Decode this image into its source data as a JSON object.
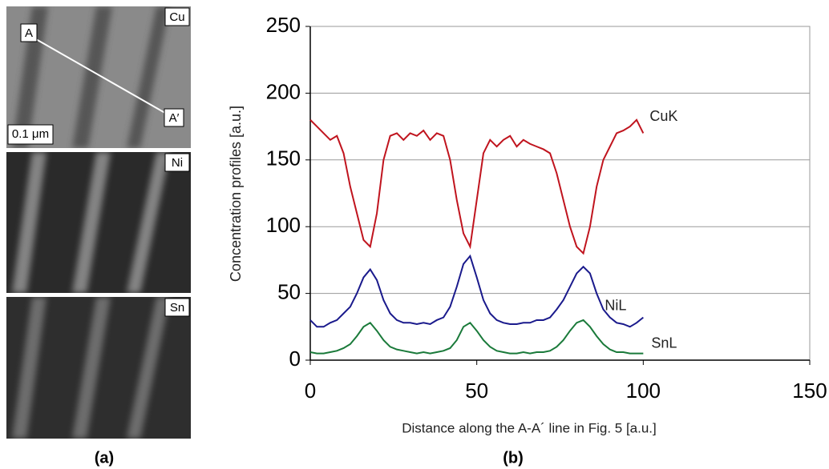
{
  "chart_data": {
    "type": "line",
    "xlabel": "Distance along the A-A´ line in Fig. 5 [a.u.]",
    "ylabel": "Concentration profiles [a.u.]",
    "x": [
      0,
      2,
      4,
      6,
      8,
      10,
      12,
      14,
      16,
      18,
      20,
      22,
      24,
      26,
      28,
      30,
      32,
      34,
      36,
      38,
      40,
      42,
      44,
      46,
      48,
      50,
      52,
      54,
      56,
      58,
      60,
      62,
      64,
      66,
      68,
      70,
      72,
      74,
      76,
      78,
      80,
      82,
      84,
      86,
      88,
      90,
      92,
      94,
      96,
      98,
      100
    ],
    "series": [
      {
        "name": "CuK",
        "color": "#c0141e",
        "values": [
          180,
          175,
          170,
          165,
          168,
          155,
          130,
          110,
          90,
          85,
          110,
          150,
          168,
          170,
          165,
          170,
          168,
          172,
          165,
          170,
          168,
          150,
          120,
          95,
          85,
          120,
          155,
          165,
          160,
          165,
          168,
          160,
          165,
          162,
          160,
          158,
          155,
          140,
          120,
          100,
          85,
          80,
          100,
          130,
          150,
          160,
          170,
          172,
          175,
          180,
          170
        ]
      },
      {
        "name": "NiL",
        "color": "#1a1a8c",
        "values": [
          30,
          25,
          25,
          28,
          30,
          35,
          40,
          50,
          62,
          68,
          60,
          45,
          35,
          30,
          28,
          28,
          27,
          28,
          27,
          30,
          32,
          40,
          55,
          72,
          78,
          62,
          45,
          35,
          30,
          28,
          27,
          27,
          28,
          28,
          30,
          30,
          32,
          38,
          45,
          55,
          65,
          70,
          65,
          50,
          38,
          32,
          28,
          27,
          25,
          28,
          32
        ]
      },
      {
        "name": "SnL",
        "color": "#1a7a3a",
        "values": [
          6,
          5,
          5,
          6,
          7,
          9,
          12,
          18,
          25,
          28,
          22,
          15,
          10,
          8,
          7,
          6,
          5,
          6,
          5,
          6,
          7,
          9,
          15,
          25,
          28,
          22,
          15,
          10,
          7,
          6,
          5,
          5,
          6,
          5,
          6,
          6,
          7,
          10,
          15,
          22,
          28,
          30,
          25,
          18,
          12,
          8,
          6,
          6,
          5,
          5,
          5
        ]
      }
    ],
    "xlim": [
      0,
      150
    ],
    "ylim": [
      0,
      250
    ],
    "xticks": [
      0,
      50,
      100,
      150
    ],
    "yticks": [
      0,
      50,
      100,
      150,
      200,
      250
    ],
    "grid": true
  },
  "micrographs": {
    "elements": [
      "Cu",
      "Ni",
      "Sn"
    ],
    "points": [
      "A",
      "A′"
    ],
    "scale_bar": "0.1 μm"
  },
  "panel_labels": [
    "(a)",
    "(b)"
  ]
}
